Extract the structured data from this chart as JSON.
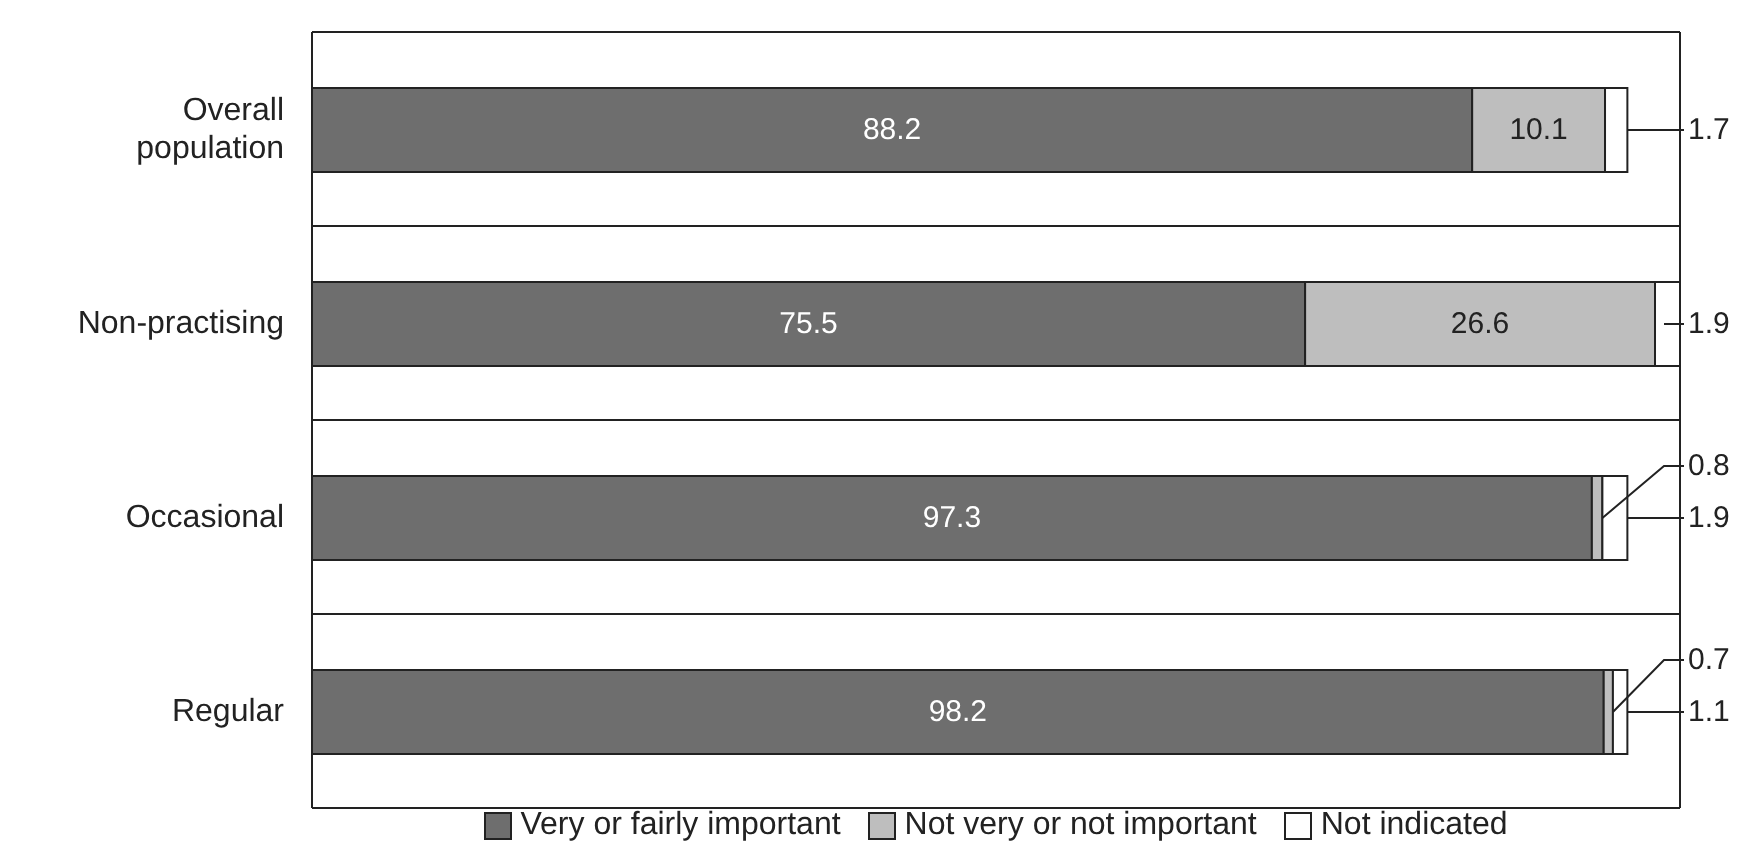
{
  "chart_data": {
    "type": "bar",
    "orientation": "horizontal",
    "stacked": true,
    "tick_labels": "y",
    "data_labels": true,
    "grid": true,
    "legend": "bottom",
    "categories": [
      "Overall population",
      "Non-practising",
      "Occasional",
      "Regular"
    ],
    "series": [
      {
        "name": "Very or fairly important",
        "color": "#6e6e6e",
        "values": [
          88.2,
          75.5,
          97.3,
          98.2
        ]
      },
      {
        "name": "Not very or not important",
        "color": "#bebebe",
        "values": [
          10.1,
          26.6,
          0.8,
          0.7
        ]
      },
      {
        "name": "Not indicated",
        "color": "#ffffff",
        "values": [
          1.7,
          1.9,
          1.9,
          1.1
        ]
      }
    ]
  }
}
